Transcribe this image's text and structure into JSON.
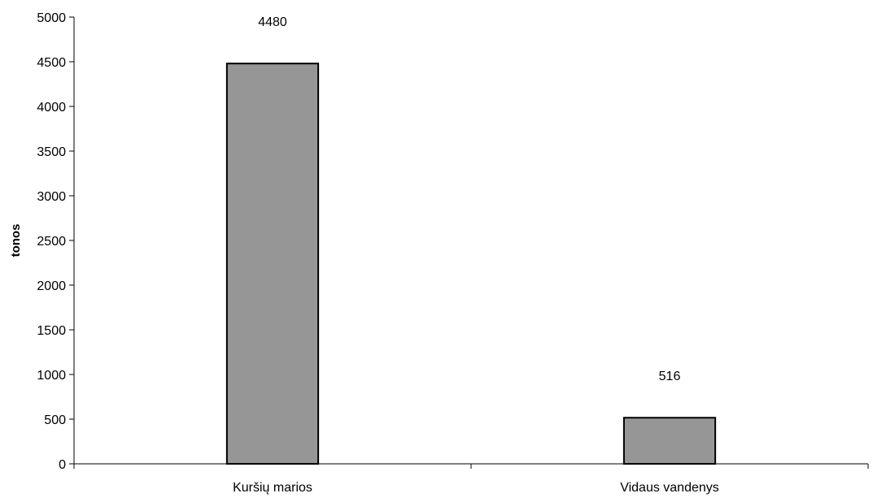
{
  "chart_data": {
    "type": "bar",
    "categories": [
      "Kuršių marios",
      "Vidaus vandenys"
    ],
    "values": [
      4480,
      516
    ],
    "data_labels": [
      "4480",
      "516"
    ],
    "ylabel": "tonos",
    "xlabel": "",
    "ylim": [
      0,
      5000
    ],
    "y_ticks": [
      0,
      500,
      1000,
      1500,
      2000,
      2500,
      3000,
      3500,
      4000,
      4500,
      5000
    ],
    "y_tick_labels": [
      "0",
      "500",
      "1000",
      "1500",
      "2000",
      "2500",
      "3000",
      "3500",
      "4000",
      "4500",
      "5000"
    ],
    "grid": false,
    "legend": "none",
    "colors": {
      "bar_fill": "#969696",
      "bar_stroke": "#000000",
      "axis": "#000000"
    }
  }
}
